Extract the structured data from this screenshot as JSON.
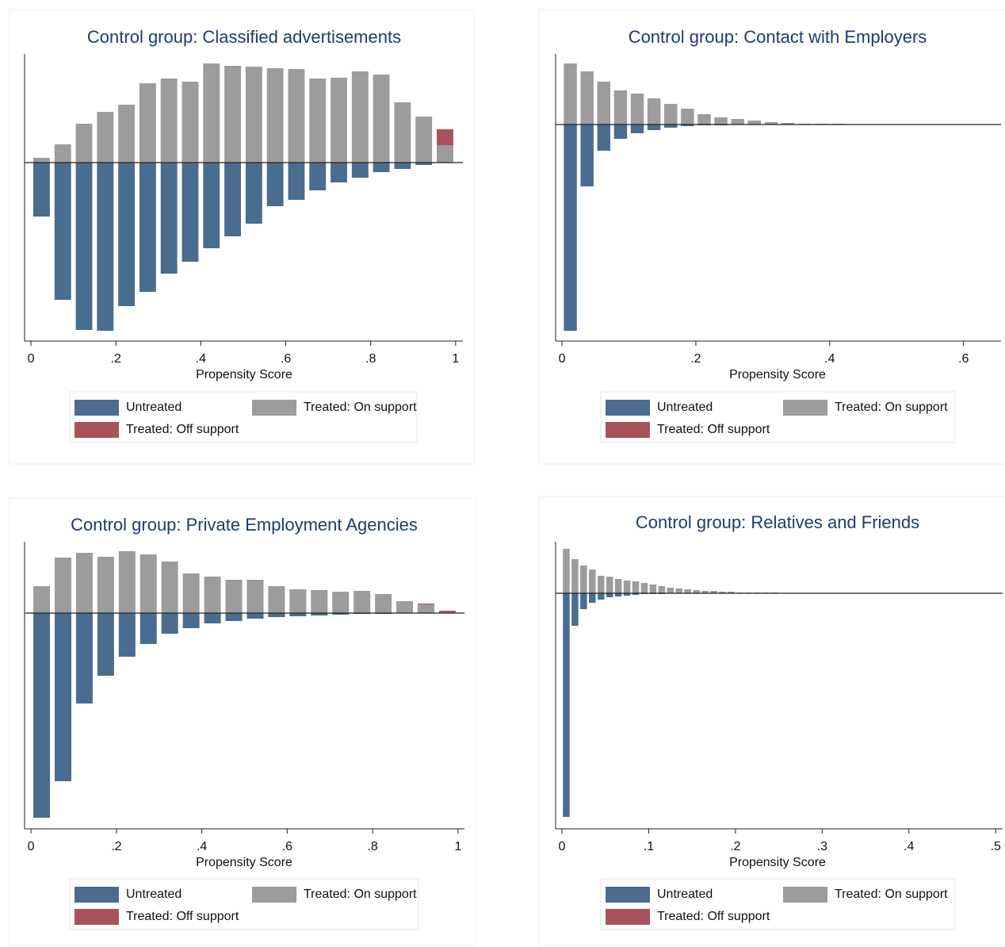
{
  "chart_data": [
    {
      "type": "histogram",
      "title": "Control group: Classified advertisements",
      "xlabel": "Propensity Score",
      "bins": [
        0,
        0.05,
        0.1,
        0.15,
        0.2,
        0.25,
        0.3,
        0.35,
        0.4,
        0.45,
        0.5,
        0.55,
        0.6,
        0.65,
        0.7,
        0.75,
        0.8,
        0.85,
        0.9,
        0.95,
        1
      ],
      "series": [
        {
          "name": "Untreated",
          "color": "#4a6d8f",
          "values": [
            -68,
            -173,
            -211,
            -212,
            -181,
            -163,
            -140,
            -125,
            -108,
            -93,
            -77,
            -55,
            -47,
            -35,
            -25,
            -19,
            -12,
            -8,
            -3,
            0
          ]
        },
        {
          "name": "Treated: On support",
          "color": "#9c9c9c",
          "values": [
            6,
            23,
            49,
            64,
            73,
            100,
            106,
            102,
            125,
            122,
            121,
            119,
            118,
            106,
            107,
            115,
            111,
            76,
            58,
            22
          ]
        },
        {
          "name": "Treated: Off support",
          "color": "#a8535c",
          "values": [
            0,
            0,
            0,
            0,
            0,
            0,
            0,
            0,
            0,
            0,
            0,
            0,
            0,
            0,
            0,
            0,
            0,
            0,
            0,
            20
          ]
        }
      ],
      "xlim": [
        -0.015,
        1.017
      ],
      "ylim": [
        -225,
        137
      ],
      "xticks": [
        0,
        {
          "value": 0.2,
          "label": ".2"
        },
        {
          "value": 0.4,
          "label": ".4"
        },
        {
          "value": 0.6,
          "label": ".6"
        },
        {
          "value": 0.8,
          "label": ".8"
        },
        1
      ]
    },
    {
      "type": "histogram",
      "title": "Control group: Contact with Employers",
      "xlabel": "Propensity Score",
      "bins": [
        0,
        0.025,
        0.05,
        0.075,
        0.1,
        0.125,
        0.15,
        0.175,
        0.2,
        0.225,
        0.25,
        0.275,
        0.3,
        0.325,
        0.35,
        0.375,
        0.4,
        0.425,
        0.45,
        0.475,
        0.5,
        0.525,
        0.55,
        0.575,
        0.6,
        0.625,
        0.65
      ],
      "series": [
        {
          "name": "Untreated",
          "color": "#4a6d8f",
          "values": [
            -260,
            -78,
            -33,
            -18,
            -11,
            -7,
            -4,
            -2,
            -1,
            -1,
            0,
            0,
            0,
            0,
            0,
            0,
            0,
            0,
            0,
            0,
            0,
            0,
            0,
            0,
            0,
            0
          ]
        },
        {
          "name": "Treated: On support",
          "color": "#9c9c9c",
          "values": [
            77,
            67,
            54,
            43,
            39,
            33,
            26,
            20,
            13,
            9,
            7,
            5,
            3,
            2,
            1,
            1,
            1,
            0,
            0,
            0,
            0,
            0,
            0,
            0,
            0,
            0
          ]
        },
        {
          "name": "Treated: Off support",
          "color": "#a8535c",
          "values": [
            0,
            0,
            0,
            0,
            0,
            0,
            0,
            0,
            0,
            0,
            0,
            0,
            0,
            0,
            0,
            0,
            0,
            0,
            0,
            0,
            0,
            0,
            0,
            0,
            0,
            0
          ]
        }
      ],
      "xlim": [
        -0.0095,
        0.656
      ],
      "ylim": [
        -273,
        89
      ],
      "xticks": [
        0,
        {
          "value": 0.2,
          "label": ".2"
        },
        {
          "value": 0.4,
          "label": ".4"
        },
        {
          "value": 0.6,
          "label": ".6"
        }
      ]
    },
    {
      "type": "histogram",
      "title": "Control group: Private Employment Agencies",
      "xlabel": "Propensity Score",
      "bins": [
        0,
        0.05,
        0.1,
        0.15,
        0.2,
        0.25,
        0.3,
        0.35,
        0.4,
        0.45,
        0.5,
        0.55,
        0.6,
        0.65,
        0.7,
        0.75,
        0.8,
        0.85,
        0.9,
        0.95,
        1
      ],
      "series": [
        {
          "name": "Untreated",
          "color": "#4a6d8f",
          "values": [
            -258,
            -212,
            -114,
            -79,
            -55,
            -39,
            -26,
            -19,
            -13,
            -10,
            -7,
            -5,
            -4,
            -3,
            -2,
            -1,
            -1,
            0,
            0,
            0
          ]
        },
        {
          "name": "Treated: On support",
          "color": "#9c9c9c",
          "values": [
            34,
            70,
            76,
            71,
            78,
            74,
            65,
            50,
            46,
            42,
            42,
            34,
            30,
            29,
            27,
            28,
            24,
            15,
            11,
            1
          ]
        },
        {
          "name": "Treated: Off support",
          "color": "#a8535c",
          "values": [
            0,
            0,
            0,
            0,
            0,
            0,
            0,
            0,
            0,
            0,
            0,
            0,
            0,
            0,
            0,
            0,
            0,
            0,
            1,
            2
          ]
        }
      ],
      "xlim": [
        -0.015,
        1.015
      ],
      "ylim": [
        -272,
        90
      ],
      "xticks": [
        0,
        {
          "value": 0.2,
          "label": ".2"
        },
        {
          "value": 0.4,
          "label": ".4"
        },
        {
          "value": 0.6,
          "label": ".6"
        },
        {
          "value": 0.8,
          "label": ".8"
        },
        1
      ]
    },
    {
      "type": "histogram",
      "title": "Control group: Relatives and Friends",
      "xlabel": "Propensity Score",
      "bins": [
        0,
        0.01,
        0.02,
        0.03,
        0.04,
        0.05,
        0.06,
        0.07,
        0.08,
        0.09,
        0.1,
        0.11,
        0.12,
        0.13,
        0.14,
        0.15,
        0.16,
        0.17,
        0.18,
        0.19,
        0.2,
        0.21,
        0.22,
        0.23,
        0.24,
        0.25,
        0.26,
        0.27,
        0.28,
        0.29,
        0.3,
        0.31,
        0.32,
        0.33,
        0.34,
        0.35,
        0.36,
        0.37,
        0.38,
        0.39,
        0.4,
        0.41,
        0.42,
        0.43,
        0.44,
        0.45,
        0.46,
        0.47,
        0.48,
        0.49,
        0.5
      ],
      "series": [
        {
          "name": "Untreated",
          "color": "#4a6d8f",
          "values": [
            -282,
            -41,
            -20,
            -12,
            -8,
            -5,
            -4,
            -3,
            -2,
            -1,
            -1,
            -1,
            0,
            0,
            0,
            0,
            0,
            0,
            0,
            0,
            0,
            0,
            0,
            0,
            0,
            0,
            0,
            0,
            0,
            0,
            0,
            0,
            0,
            0,
            0,
            0,
            0,
            0,
            0,
            0,
            0,
            0,
            0,
            0,
            0,
            0,
            0,
            0,
            0,
            0
          ]
        },
        {
          "name": "Treated: On support",
          "color": "#9c9c9c",
          "values": [
            56,
            43,
            35,
            30,
            22,
            21,
            18,
            16,
            15,
            13,
            11,
            9,
            7,
            6,
            5,
            4,
            3,
            3,
            2,
            2,
            1,
            1,
            1,
            1,
            1,
            0,
            0,
            0,
            0,
            0,
            0,
            0,
            0,
            0,
            0,
            0,
            0,
            0,
            0,
            0,
            0,
            0,
            0,
            0,
            0,
            0,
            0,
            0,
            0,
            0
          ]
        },
        {
          "name": "Treated: Off support",
          "color": "#a8535c",
          "values": [
            0,
            0,
            0,
            0,
            0,
            0,
            0,
            0,
            0,
            0,
            0,
            0,
            0,
            0,
            0,
            0,
            0,
            0,
            0,
            0,
            0,
            0,
            0,
            0,
            0,
            0,
            0,
            0,
            0,
            0,
            0,
            0,
            0,
            0,
            0,
            0,
            0,
            0,
            0,
            0,
            0,
            0,
            0,
            0,
            0,
            0,
            0,
            0,
            0,
            0
          ]
        }
      ],
      "xlim": [
        -0.0073,
        0.508
      ],
      "ylim": [
        -297,
        65
      ],
      "xticks": [
        0,
        {
          "value": 0.1,
          "label": ".1"
        },
        {
          "value": 0.2,
          "label": ".2"
        },
        {
          "value": 0.3,
          "label": ".3"
        },
        {
          "value": 0.4,
          "label": ".4"
        },
        {
          "value": 0.5,
          "label": ".5"
        }
      ]
    }
  ]
}
